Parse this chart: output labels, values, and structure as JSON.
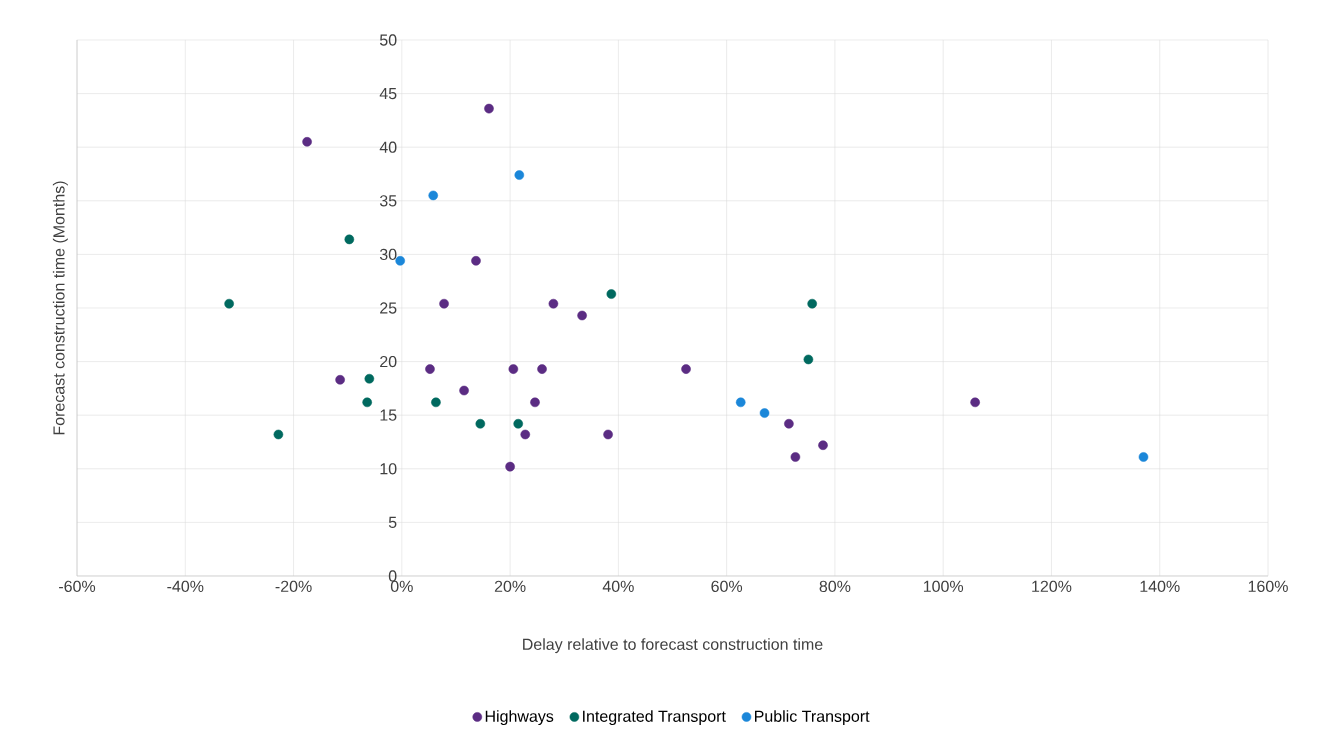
{
  "chart_data": {
    "type": "scatter",
    "xlabel": "Delay relative to forecast construction time",
    "ylabel": "Forecast construction time (Months)",
    "xlim": [
      -60,
      160
    ],
    "ylim": [
      0,
      50
    ],
    "xticks": [
      {
        "value": -60,
        "label": "-60%"
      },
      {
        "value": -40,
        "label": "-40%"
      },
      {
        "value": -20,
        "label": "-20%"
      },
      {
        "value": 0,
        "label": "0%"
      },
      {
        "value": 20,
        "label": "20%"
      },
      {
        "value": 40,
        "label": "40%"
      },
      {
        "value": 60,
        "label": "60%"
      },
      {
        "value": 80,
        "label": "80%"
      },
      {
        "value": 100,
        "label": "100%"
      },
      {
        "value": 120,
        "label": "120%"
      },
      {
        "value": 140,
        "label": "140%"
      },
      {
        "value": 160,
        "label": "160%"
      }
    ],
    "yticks": [
      0,
      5,
      10,
      15,
      20,
      25,
      30,
      35,
      40,
      45,
      50
    ],
    "grid": true,
    "legend": "bottom",
    "marker": "circle",
    "series": [
      {
        "name": "Highways",
        "color": "#5b2c83",
        "x": [
          -17.5,
          16.1,
          13.7,
          7.8,
          28.0,
          33.3,
          -11.4,
          5.2,
          11.5,
          20.6,
          25.9,
          24.6,
          22.8,
          20.0,
          38.1,
          52.5,
          71.5,
          72.7,
          77.8,
          105.9
        ],
        "values": [
          40.5,
          43.6,
          29.4,
          25.4,
          25.4,
          24.3,
          18.3,
          19.3,
          17.3,
          19.3,
          19.3,
          16.2,
          13.2,
          10.2,
          13.2,
          19.3,
          14.2,
          11.1,
          12.2,
          16.2
        ]
      },
      {
        "name": "Integrated Transport",
        "color": "#00695f",
        "x": [
          -31.9,
          -22.8,
          -9.7,
          -6.0,
          -6.4,
          6.3,
          14.5,
          21.5,
          38.7,
          75.8,
          75.1
        ],
        "values": [
          25.4,
          13.2,
          31.4,
          18.4,
          16.2,
          16.2,
          14.2,
          14.2,
          26.3,
          25.4,
          20.2
        ]
      },
      {
        "name": "Public Transport",
        "color": "#1b87d9",
        "x": [
          -0.3,
          5.8,
          21.7,
          62.6,
          67.0,
          137.0
        ],
        "values": [
          29.4,
          35.5,
          37.4,
          16.2,
          15.2,
          11.1
        ]
      }
    ]
  }
}
